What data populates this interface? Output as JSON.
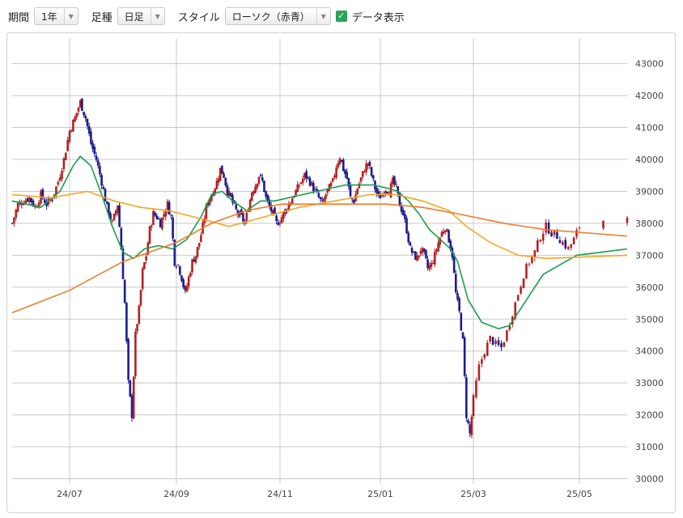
{
  "toolbar": {
    "period_label": "期間",
    "period_value": "1年",
    "candle_label": "足種",
    "candle_value": "日足",
    "style_label": "スタイル",
    "style_value": "ローソク（赤青）",
    "show_data_label": "データ表示",
    "show_data_checked": true
  },
  "colors": {
    "up_candle": "#b22222",
    "down_candle": "#1c1c8c",
    "ma_short": "#1a9e4b",
    "ma_mid": "#f5a623",
    "ma_long": "#f07a28",
    "grid": "#c8c8c8"
  },
  "chart_data": {
    "type": "candlestick",
    "x_ticks": [
      "24/07",
      "24/09",
      "24/11",
      "25/01",
      "25/03",
      "25/05"
    ],
    "y_ticks": [
      30000,
      31000,
      32000,
      33000,
      34000,
      35000,
      36000,
      37000,
      38000,
      39000,
      40000,
      41000,
      42000,
      43000
    ],
    "ylim": [
      29800,
      43600
    ],
    "grid": true,
    "close_series": [
      [
        0,
        38000
      ],
      [
        3,
        38600
      ],
      [
        6,
        38700
      ],
      [
        9,
        38800
      ],
      [
        12,
        38500
      ],
      [
        15,
        38900
      ],
      [
        18,
        38600
      ],
      [
        21,
        38800
      ],
      [
        24,
        39300
      ],
      [
        27,
        40000
      ],
      [
        30,
        40900
      ],
      [
        33,
        41300
      ],
      [
        36,
        41800
      ],
      [
        39,
        41300
      ],
      [
        42,
        40500
      ],
      [
        45,
        40000
      ],
      [
        48,
        39300
      ],
      [
        51,
        38500
      ],
      [
        54,
        38000
      ],
      [
        57,
        38600
      ],
      [
        59,
        37200
      ],
      [
        61,
        35500
      ],
      [
        63,
        33000
      ],
      [
        65,
        32000
      ],
      [
        67,
        34500
      ],
      [
        69,
        35300
      ],
      [
        71,
        36500
      ],
      [
        73,
        37000
      ],
      [
        75,
        37800
      ],
      [
        77,
        38300
      ],
      [
        79,
        38200
      ],
      [
        81,
        38000
      ],
      [
        83,
        38300
      ],
      [
        85,
        38600
      ],
      [
        87,
        38200
      ],
      [
        89,
        36800
      ],
      [
        91,
        36700
      ],
      [
        93,
        36300
      ],
      [
        95,
        35800
      ],
      [
        97,
        36300
      ],
      [
        99,
        36800
      ],
      [
        101,
        37000
      ],
      [
        103,
        37400
      ],
      [
        105,
        37900
      ],
      [
        107,
        38500
      ],
      [
        109,
        38800
      ],
      [
        111,
        39000
      ],
      [
        113,
        39300
      ],
      [
        115,
        39700
      ],
      [
        117,
        39500
      ],
      [
        119,
        39000
      ],
      [
        121,
        38800
      ],
      [
        123,
        38500
      ],
      [
        125,
        38300
      ],
      [
        127,
        38200
      ],
      [
        129,
        38000
      ],
      [
        131,
        38500
      ],
      [
        133,
        39000
      ],
      [
        135,
        39200
      ],
      [
        137,
        39500
      ],
      [
        139,
        39300
      ],
      [
        141,
        38800
      ],
      [
        143,
        38500
      ],
      [
        145,
        38300
      ],
      [
        147,
        38000
      ],
      [
        149,
        38100
      ],
      [
        151,
        38300
      ],
      [
        153,
        38500
      ],
      [
        155,
        38700
      ],
      [
        157,
        38900
      ],
      [
        159,
        39100
      ],
      [
        161,
        39300
      ],
      [
        163,
        39500
      ],
      [
        165,
        39400
      ],
      [
        167,
        39200
      ],
      [
        169,
        39000
      ],
      [
        171,
        38800
      ],
      [
        173,
        38600
      ],
      [
        175,
        38900
      ],
      [
        177,
        39100
      ],
      [
        179,
        39300
      ],
      [
        181,
        39800
      ],
      [
        183,
        40100
      ],
      [
        185,
        39700
      ],
      [
        187,
        39400
      ],
      [
        189,
        38800
      ],
      [
        191,
        38700
      ],
      [
        193,
        39100
      ],
      [
        195,
        39400
      ],
      [
        197,
        39700
      ],
      [
        199,
        39900
      ],
      [
        201,
        39500
      ],
      [
        203,
        39100
      ],
      [
        205,
        38800
      ],
      [
        207,
        38900
      ],
      [
        209,
        39100
      ],
      [
        211,
        39000
      ],
      [
        213,
        39300
      ],
      [
        215,
        39100
      ],
      [
        217,
        38600
      ],
      [
        219,
        38300
      ],
      [
        221,
        37800
      ],
      [
        223,
        37200
      ],
      [
        225,
        37000
      ],
      [
        227,
        36900
      ],
      [
        229,
        37200
      ],
      [
        231,
        37000
      ],
      [
        233,
        36600
      ],
      [
        235,
        36700
      ],
      [
        237,
        37000
      ],
      [
        239,
        37400
      ],
      [
        241,
        37700
      ],
      [
        243,
        37900
      ],
      [
        245,
        37500
      ],
      [
        247,
        37000
      ],
      [
        249,
        35800
      ],
      [
        251,
        35200
      ],
      [
        253,
        34300
      ],
      [
        255,
        32000
      ],
      [
        257,
        31400
      ],
      [
        259,
        32500
      ],
      [
        261,
        33500
      ],
      [
        263,
        34000
      ],
      [
        265,
        34400
      ],
      [
        267,
        34200
      ],
      [
        269,
        34100
      ],
      [
        271,
        34600
      ],
      [
        273,
        35200
      ],
      [
        275,
        35800
      ],
      [
        277,
        36400
      ],
      [
        279,
        36800
      ],
      [
        281,
        37100
      ],
      [
        283,
        37600
      ],
      [
        285,
        37900
      ],
      [
        287,
        37700
      ],
      [
        289,
        37600
      ],
      [
        291,
        37400
      ],
      [
        293,
        37200
      ],
      [
        295,
        37500
      ],
      [
        297,
        37900
      ],
      [
        299,
        38300
      ]
    ],
    "series": [
      {
        "points": [
          [
            0,
            38700
          ],
          [
            15,
            38500
          ],
          [
            25,
            39000
          ],
          [
            32,
            39800
          ],
          [
            36,
            40100
          ],
          [
            42,
            39800
          ],
          [
            48,
            38900
          ],
          [
            54,
            37900
          ],
          [
            60,
            37100
          ],
          [
            66,
            36900
          ],
          [
            72,
            37200
          ],
          [
            80,
            37300
          ],
          [
            88,
            37200
          ],
          [
            96,
            37500
          ],
          [
            104,
            38200
          ],
          [
            110,
            38900
          ],
          [
            116,
            39000
          ],
          [
            122,
            38700
          ],
          [
            130,
            38400
          ],
          [
            138,
            38700
          ],
          [
            146,
            38700
          ],
          [
            154,
            38800
          ],
          [
            162,
            38900
          ],
          [
            170,
            39000
          ],
          [
            178,
            39100
          ],
          [
            186,
            39200
          ],
          [
            194,
            39200
          ],
          [
            202,
            39200
          ],
          [
            210,
            39100
          ],
          [
            216,
            39000
          ],
          [
            222,
            38700
          ],
          [
            228,
            38300
          ],
          [
            234,
            37800
          ],
          [
            240,
            37500
          ],
          [
            246,
            37200
          ],
          [
            250,
            36800
          ],
          [
            256,
            35600
          ],
          [
            262,
            34900
          ],
          [
            268,
            34700
          ],
          [
            272,
            34800
          ],
          [
            278,
            35600
          ],
          [
            284,
            36400
          ],
          [
            290,
            36700
          ],
          [
            296,
            37000
          ],
          [
            299,
            37200
          ]
        ]
      },
      {
        "points": [
          [
            0,
            38900
          ],
          [
            20,
            38800
          ],
          [
            40,
            39000
          ],
          [
            55,
            38700
          ],
          [
            70,
            38500
          ],
          [
            85,
            38400
          ],
          [
            100,
            38200
          ],
          [
            120,
            37900
          ],
          [
            140,
            38200
          ],
          [
            160,
            38500
          ],
          [
            180,
            38700
          ],
          [
            200,
            38900
          ],
          [
            215,
            38900
          ],
          [
            230,
            38700
          ],
          [
            245,
            38400
          ],
          [
            255,
            37900
          ],
          [
            265,
            37400
          ],
          [
            275,
            37000
          ],
          [
            285,
            36900
          ],
          [
            299,
            37000
          ]
        ]
      },
      {
        "points": [
          [
            0,
            35200
          ],
          [
            30,
            35900
          ],
          [
            60,
            36800
          ],
          [
            90,
            37400
          ],
          [
            110,
            38000
          ],
          [
            130,
            38400
          ],
          [
            150,
            38600
          ],
          [
            170,
            38600
          ],
          [
            190,
            38600
          ],
          [
            210,
            38600
          ],
          [
            230,
            38500
          ],
          [
            250,
            38300
          ],
          [
            270,
            38000
          ],
          [
            285,
            37800
          ],
          [
            299,
            37600
          ]
        ]
      }
    ]
  }
}
